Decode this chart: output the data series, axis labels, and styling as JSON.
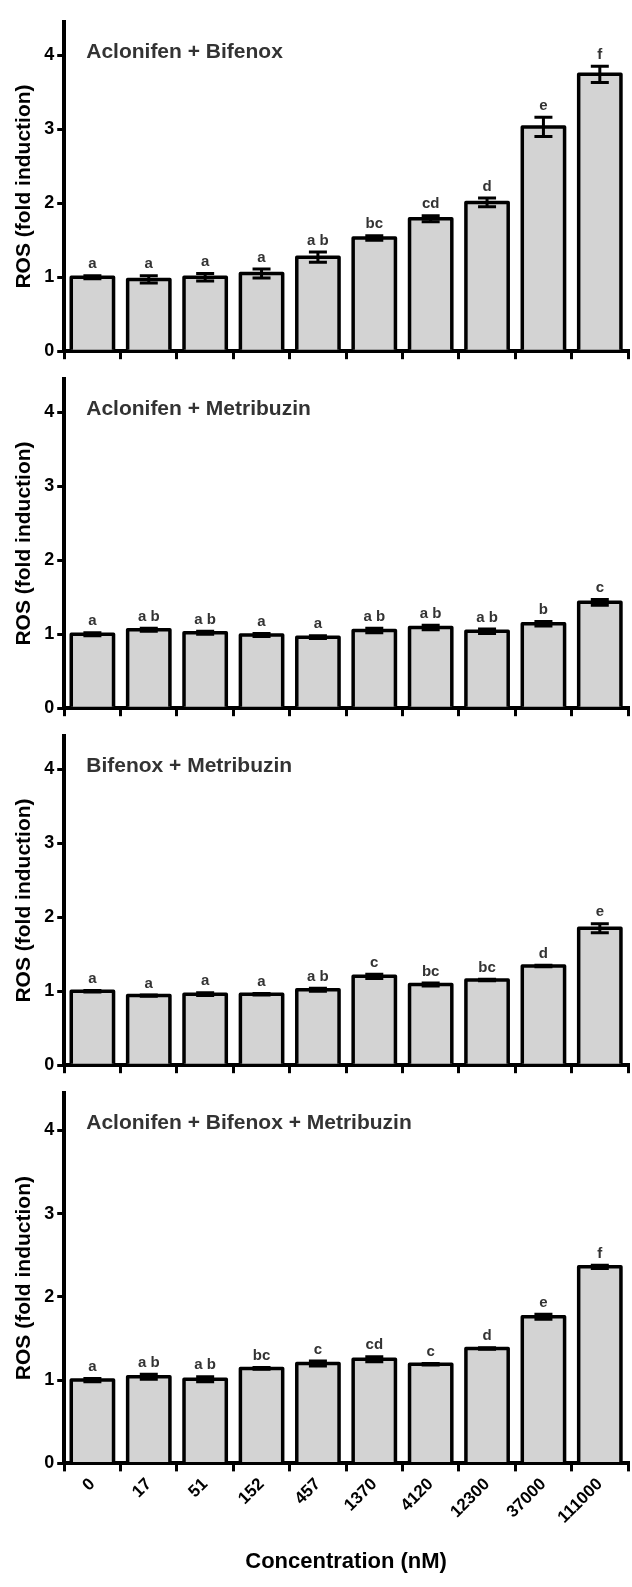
{
  "chart_data": [
    {
      "type": "bar",
      "title": "Aclonifen + Bifenox",
      "ylabel": "ROS (fold induction)",
      "categories": [
        "0",
        "17",
        "51",
        "152",
        "457",
        "1370",
        "4120",
        "12300",
        "37000",
        "111000"
      ],
      "values": [
        1.0,
        0.97,
        1.0,
        1.05,
        1.27,
        1.53,
        1.79,
        2.01,
        3.03,
        3.74
      ],
      "errors": [
        0.02,
        0.05,
        0.05,
        0.06,
        0.07,
        0.03,
        0.04,
        0.06,
        0.13,
        0.11
      ],
      "value_labels": [
        "a",
        "a",
        "a",
        "a",
        "a b",
        "bc",
        "cd",
        "d",
        "e",
        "f"
      ],
      "color": "#d3d3d3",
      "ylim": [
        0,
        4.45
      ],
      "yticks": [
        0,
        1,
        2,
        3,
        4
      ],
      "grid": false,
      "tick_labels": "y"
    },
    {
      "type": "bar",
      "title": "Aclonifen + Metribuzin",
      "ylabel": "ROS (fold induction)",
      "categories": [
        "0",
        "17",
        "51",
        "152",
        "457",
        "1370",
        "4120",
        "12300",
        "37000",
        "111000"
      ],
      "values": [
        1.0,
        1.06,
        1.02,
        0.99,
        0.96,
        1.05,
        1.09,
        1.04,
        1.14,
        1.43
      ],
      "errors": [
        0.02,
        0.02,
        0.02,
        0.02,
        0.02,
        0.03,
        0.03,
        0.03,
        0.03,
        0.04
      ],
      "value_labels": [
        "a",
        "a b",
        "a b",
        "a",
        "a",
        "a b",
        "a b",
        "a b",
        "b",
        "c"
      ],
      "color": "#d3d3d3",
      "ylim": [
        0,
        4.45
      ],
      "yticks": [
        0,
        1,
        2,
        3,
        4
      ],
      "grid": false,
      "tick_labels": "y"
    },
    {
      "type": "bar",
      "title": "Bifenox + Metribuzin",
      "ylabel": "ROS (fold induction)",
      "categories": [
        "0",
        "17",
        "51",
        "152",
        "457",
        "1370",
        "4120",
        "12300",
        "37000",
        "111000"
      ],
      "values": [
        1.0,
        0.94,
        0.96,
        0.96,
        1.02,
        1.2,
        1.09,
        1.15,
        1.34,
        1.85
      ],
      "errors": [
        0.01,
        0.01,
        0.02,
        0.01,
        0.02,
        0.03,
        0.02,
        0.01,
        0.01,
        0.06
      ],
      "value_labels": [
        "a",
        "a",
        "a",
        "a",
        "a b",
        "c",
        "bc",
        "bc",
        "d",
        "e"
      ],
      "color": "#d3d3d3",
      "ylim": [
        0,
        4.45
      ],
      "yticks": [
        0,
        1,
        2,
        3,
        4
      ],
      "grid": false,
      "tick_labels": "y"
    },
    {
      "type": "bar",
      "title": "Aclonifen + Bifenox + Metribuzin",
      "ylabel": "ROS (fold induction)",
      "xlabel": "Concentration (nM)",
      "categories": [
        "0",
        "17",
        "51",
        "152",
        "457",
        "1370",
        "4120",
        "12300",
        "37000",
        "111000"
      ],
      "values": [
        1.0,
        1.04,
        1.01,
        1.14,
        1.2,
        1.25,
        1.19,
        1.38,
        1.76,
        2.36
      ],
      "errors": [
        0.02,
        0.03,
        0.03,
        0.01,
        0.03,
        0.03,
        0.01,
        0.01,
        0.03,
        0.02
      ],
      "value_labels": [
        "a",
        "a b",
        "a b",
        "bc",
        "c",
        "cd",
        "c",
        "d",
        "e",
        "f"
      ],
      "color": "#d3d3d3",
      "ylim": [
        0,
        4.45
      ],
      "yticks": [
        0,
        1,
        2,
        3,
        4
      ],
      "grid": false
    }
  ]
}
